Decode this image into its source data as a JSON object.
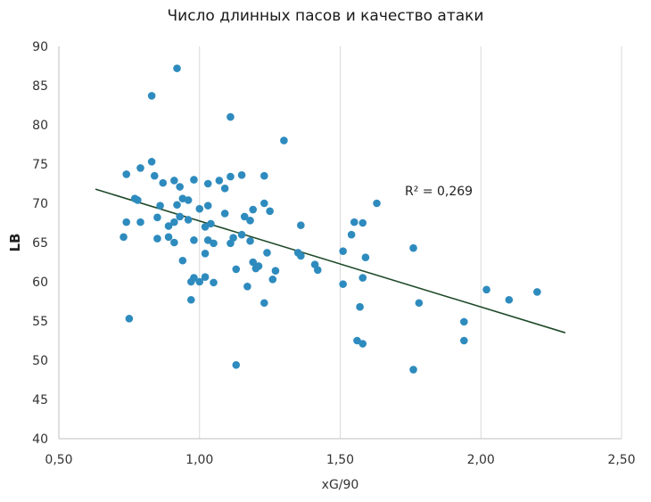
{
  "chart_data": {
    "type": "scatter",
    "title": "Число длинных пасов и качество атаки",
    "xlabel": "xG/90",
    "ylabel": "LB",
    "xlim": [
      0.5,
      2.5
    ],
    "ylim": [
      40,
      90
    ],
    "x_ticks": [
      "0,50",
      "1,00",
      "1,50",
      "2,00",
      "2,50"
    ],
    "y_ticks": [
      "40",
      "45",
      "50",
      "55",
      "60",
      "65",
      "70",
      "75",
      "80",
      "85",
      "90"
    ],
    "grid": "vertical",
    "annotation": "R² = 0,269",
    "colors": {
      "points": "#2e8bbe",
      "trendline": "#1f4a2a",
      "grid": "#d9d9d9"
    },
    "trendline": {
      "x": [
        0.63,
        2.3
      ],
      "y": [
        71.8,
        53.5
      ]
    },
    "points": [
      {
        "x": 0.92,
        "y": 87.2
      },
      {
        "x": 0.83,
        "y": 83.7
      },
      {
        "x": 1.11,
        "y": 81.0
      },
      {
        "x": 1.3,
        "y": 78.0
      },
      {
        "x": 0.83,
        "y": 75.3
      },
      {
        "x": 0.79,
        "y": 74.5
      },
      {
        "x": 0.74,
        "y": 73.7
      },
      {
        "x": 0.84,
        "y": 73.5
      },
      {
        "x": 0.87,
        "y": 72.6
      },
      {
        "x": 0.91,
        "y": 72.9
      },
      {
        "x": 0.93,
        "y": 72.1
      },
      {
        "x": 0.98,
        "y": 73.0
      },
      {
        "x": 1.03,
        "y": 72.5
      },
      {
        "x": 1.07,
        "y": 72.9
      },
      {
        "x": 1.09,
        "y": 71.9
      },
      {
        "x": 1.11,
        "y": 73.4
      },
      {
        "x": 1.15,
        "y": 73.6
      },
      {
        "x": 1.23,
        "y": 73.5
      },
      {
        "x": 0.77,
        "y": 70.6
      },
      {
        "x": 0.78,
        "y": 70.4
      },
      {
        "x": 0.86,
        "y": 69.7
      },
      {
        "x": 0.92,
        "y": 69.8
      },
      {
        "x": 0.94,
        "y": 70.6
      },
      {
        "x": 0.96,
        "y": 70.4
      },
      {
        "x": 1.0,
        "y": 69.3
      },
      {
        "x": 1.03,
        "y": 69.7
      },
      {
        "x": 1.09,
        "y": 68.7
      },
      {
        "x": 1.19,
        "y": 69.2
      },
      {
        "x": 1.23,
        "y": 70.0
      },
      {
        "x": 1.25,
        "y": 69.0
      },
      {
        "x": 0.74,
        "y": 67.6
      },
      {
        "x": 0.79,
        "y": 67.6
      },
      {
        "x": 0.85,
        "y": 68.2
      },
      {
        "x": 0.89,
        "y": 67.1
      },
      {
        "x": 0.91,
        "y": 67.6
      },
      {
        "x": 0.93,
        "y": 68.3
      },
      {
        "x": 0.96,
        "y": 67.9
      },
      {
        "x": 1.02,
        "y": 67.0
      },
      {
        "x": 1.04,
        "y": 67.4
      },
      {
        "x": 1.16,
        "y": 68.3
      },
      {
        "x": 1.18,
        "y": 67.8
      },
      {
        "x": 1.36,
        "y": 67.2
      },
      {
        "x": 0.73,
        "y": 65.7
      },
      {
        "x": 0.85,
        "y": 65.5
      },
      {
        "x": 0.89,
        "y": 65.7
      },
      {
        "x": 0.91,
        "y": 65.0
      },
      {
        "x": 0.98,
        "y": 65.3
      },
      {
        "x": 1.03,
        "y": 65.3
      },
      {
        "x": 1.05,
        "y": 64.9
      },
      {
        "x": 1.11,
        "y": 64.9
      },
      {
        "x": 1.12,
        "y": 65.6
      },
      {
        "x": 1.15,
        "y": 66.0
      },
      {
        "x": 1.18,
        "y": 65.2
      },
      {
        "x": 0.94,
        "y": 62.7
      },
      {
        "x": 1.02,
        "y": 63.6
      },
      {
        "x": 1.24,
        "y": 63.7
      },
      {
        "x": 1.19,
        "y": 62.5
      },
      {
        "x": 1.2,
        "y": 61.7
      },
      {
        "x": 1.21,
        "y": 62.0
      },
      {
        "x": 1.13,
        "y": 61.6
      },
      {
        "x": 1.27,
        "y": 61.4
      },
      {
        "x": 0.97,
        "y": 60.0
      },
      {
        "x": 0.98,
        "y": 60.5
      },
      {
        "x": 1.0,
        "y": 60.0
      },
      {
        "x": 1.02,
        "y": 60.6
      },
      {
        "x": 1.05,
        "y": 59.9
      },
      {
        "x": 1.17,
        "y": 59.4
      },
      {
        "x": 1.26,
        "y": 60.3
      },
      {
        "x": 0.97,
        "y": 57.7
      },
      {
        "x": 1.23,
        "y": 57.3
      },
      {
        "x": 0.75,
        "y": 55.3
      },
      {
        "x": 1.13,
        "y": 49.4
      },
      {
        "x": 1.35,
        "y": 63.7
      },
      {
        "x": 1.36,
        "y": 63.3
      },
      {
        "x": 1.41,
        "y": 62.2
      },
      {
        "x": 1.42,
        "y": 61.5
      },
      {
        "x": 1.51,
        "y": 63.9
      },
      {
        "x": 1.51,
        "y": 59.7
      },
      {
        "x": 1.54,
        "y": 66.0
      },
      {
        "x": 1.55,
        "y": 67.6
      },
      {
        "x": 1.58,
        "y": 67.5
      },
      {
        "x": 1.59,
        "y": 63.1
      },
      {
        "x": 1.58,
        "y": 60.5
      },
      {
        "x": 1.57,
        "y": 56.8
      },
      {
        "x": 1.56,
        "y": 52.5
      },
      {
        "x": 1.58,
        "y": 52.1
      },
      {
        "x": 1.63,
        "y": 70.0
      },
      {
        "x": 1.76,
        "y": 64.3
      },
      {
        "x": 1.78,
        "y": 57.3
      },
      {
        "x": 1.76,
        "y": 48.8
      },
      {
        "x": 1.94,
        "y": 54.9
      },
      {
        "x": 1.94,
        "y": 52.5
      },
      {
        "x": 2.02,
        "y": 59.0
      },
      {
        "x": 2.1,
        "y": 57.7
      },
      {
        "x": 2.2,
        "y": 58.7
      }
    ]
  }
}
